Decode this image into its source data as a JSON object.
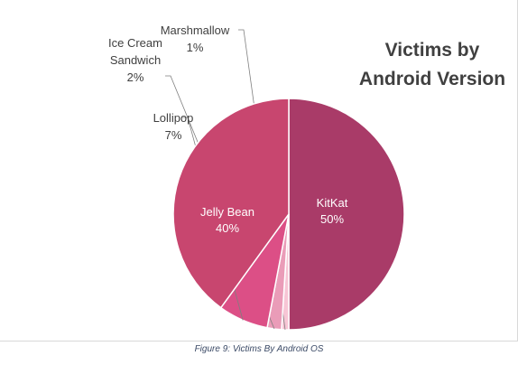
{
  "chart_data": {
    "type": "pie",
    "title_lines": [
      "Victims by",
      "Android Version"
    ],
    "slices": [
      {
        "label": "KitKat",
        "value": 50,
        "value_text": "50%",
        "color": "#a93b68"
      },
      {
        "label": "Marshmallow",
        "value": 1,
        "value_text": "1%",
        "color": "#f7c5d5"
      },
      {
        "label": "Ice Cream Sandwich",
        "label_lines": [
          "Ice Cream",
          "Sandwich"
        ],
        "value": 2,
        "value_text": "2%",
        "color": "#ea9cb8"
      },
      {
        "label": "Lollipop",
        "value": 7,
        "value_text": "7%",
        "color": "#dc4f86"
      },
      {
        "label": "Jelly Bean",
        "value": 40,
        "value_text": "40%",
        "color": "#c8466f"
      }
    ],
    "label_color_inside": "#ffffff",
    "label_color_outside": "#404040",
    "legend": "none"
  },
  "caption": "Figure 9: Victims By Android OS"
}
